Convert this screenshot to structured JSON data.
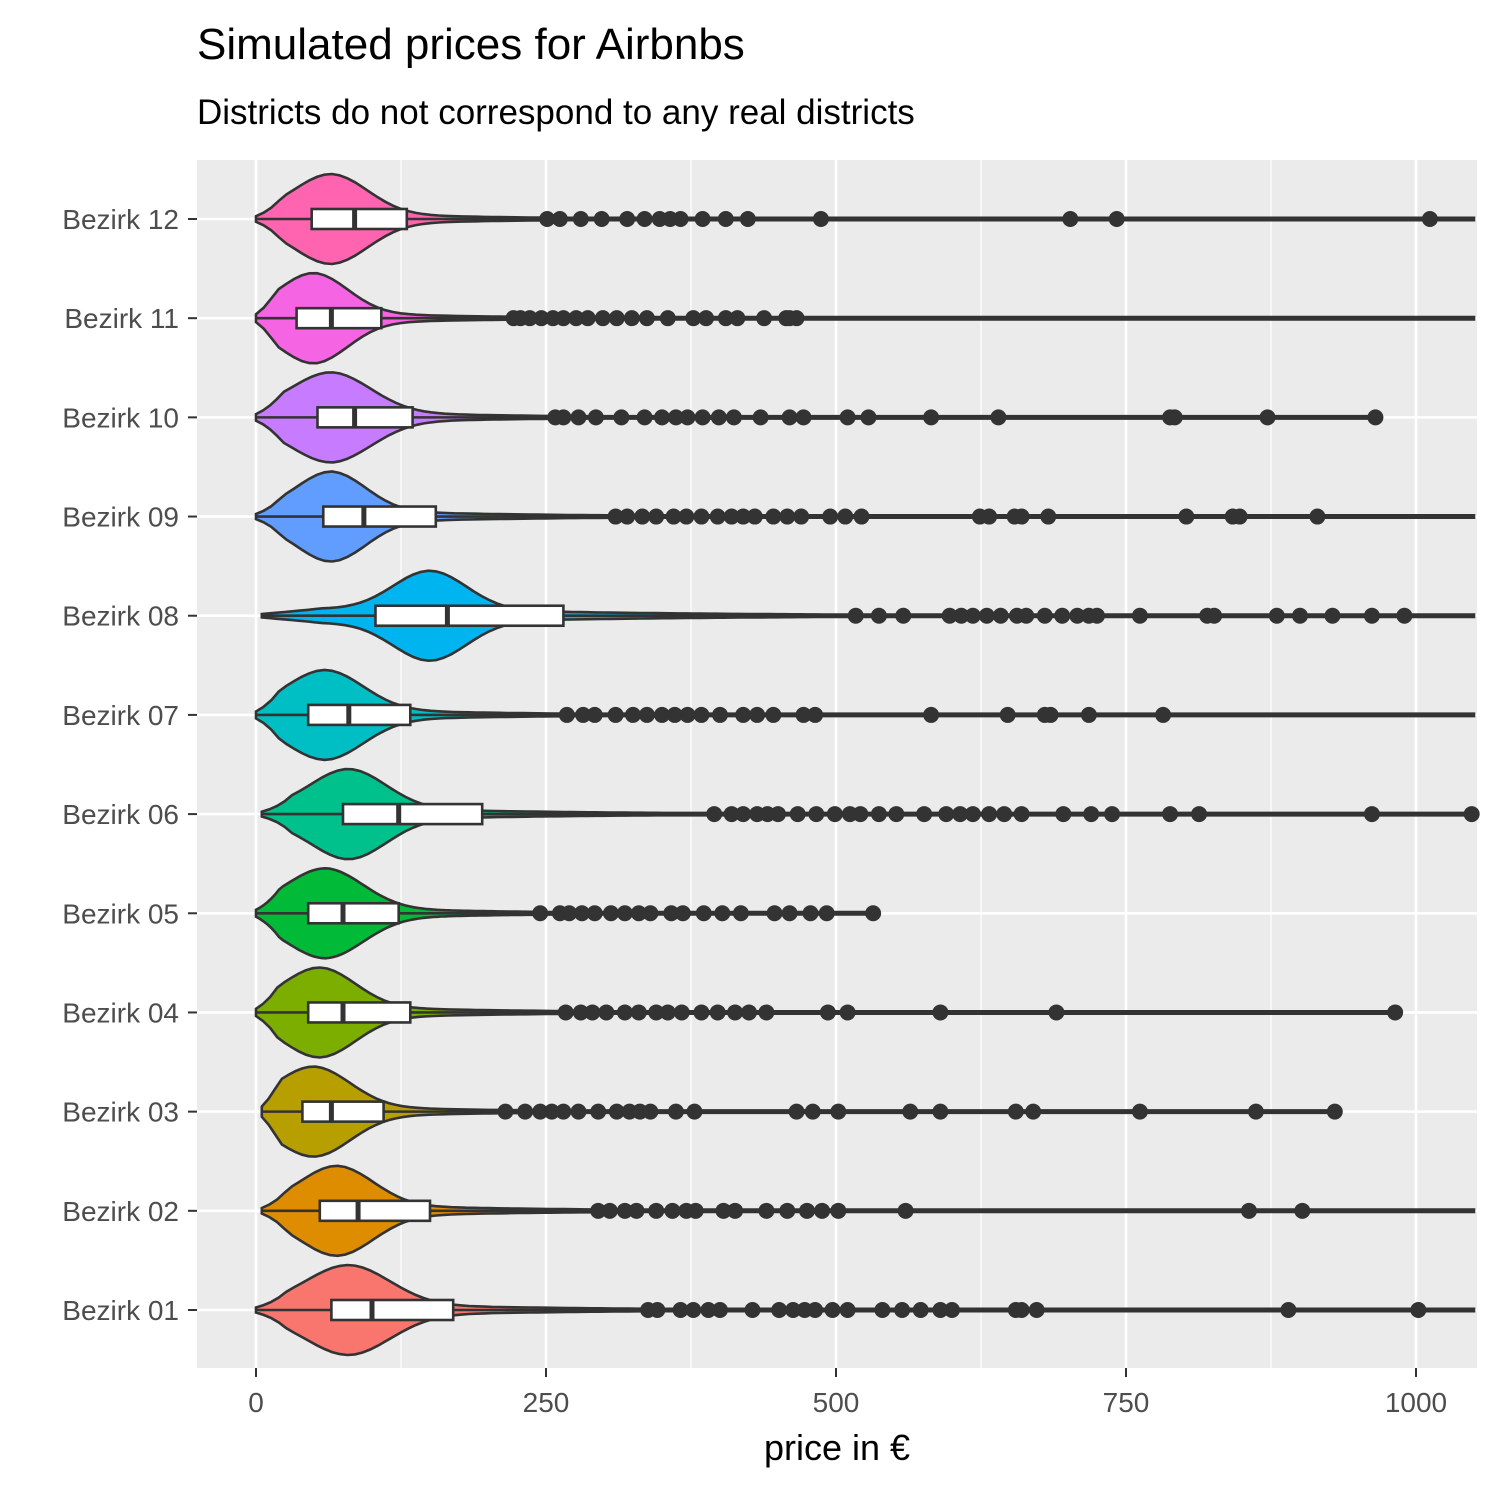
{
  "chart_data": {
    "type": "violin",
    "title": "Simulated prices for Airbnbs",
    "subtitle": "Districts do not correspond to any real districts",
    "xlabel": "price in €",
    "ylabel": "",
    "xlim": [
      -100,
      1050
    ],
    "x_ticks": [
      0,
      250,
      500,
      750,
      1000
    ],
    "x_tick_labels": [
      "0",
      "250",
      "500",
      "750",
      "1000"
    ],
    "grid": true,
    "legend": "none",
    "categories": [
      "Bezirk 01",
      "Bezirk 02",
      "Bezirk 03",
      "Bezirk 04",
      "Bezirk 05",
      "Bezirk 06",
      "Bezirk 07",
      "Bezirk 08",
      "Bezirk 09",
      "Bezirk 10",
      "Bezirk 11",
      "Bezirk 12"
    ],
    "series": [
      {
        "category": "Bezirk 01",
        "color": "#F8766D",
        "min": 0,
        "max": 1050,
        "mode": 80,
        "q1": 65,
        "median": 100,
        "q3": 170,
        "modeWidth": 0.33,
        "outliers": [
          338,
          346,
          366,
          377,
          390,
          400,
          428,
          451,
          463,
          473,
          482,
          497,
          510,
          540,
          557,
          573,
          590,
          600,
          655,
          660,
          673,
          890,
          1002
        ]
      },
      {
        "category": "Bezirk 02",
        "color": "#DE8C00",
        "min": 5,
        "max": 1050,
        "mode": 70,
        "q1": 55,
        "median": 88,
        "q3": 150,
        "modeWidth": 0.33,
        "outliers": [
          295,
          305,
          318,
          328,
          345,
          359,
          371,
          379,
          403,
          413,
          440,
          458,
          475,
          488,
          502,
          560,
          856,
          902
        ]
      },
      {
        "category": "Bezirk 03",
        "color": "#B79F00",
        "min": 5,
        "max": 930,
        "mode": 50,
        "q1": 40,
        "median": 65,
        "q3": 110,
        "modeWidth": 0.48,
        "outliers": [
          215,
          232,
          245,
          255,
          265,
          278,
          295,
          311,
          322,
          331,
          340,
          362,
          378,
          466,
          480,
          502,
          564,
          590,
          655,
          670,
          762,
          862,
          930
        ]
      },
      {
        "category": "Bezirk 04",
        "color": "#7CAE00",
        "min": 0,
        "max": 980,
        "mode": 55,
        "q1": 45,
        "median": 75,
        "q3": 133,
        "modeWidth": 0.38,
        "outliers": [
          267,
          280,
          290,
          302,
          318,
          330,
          345,
          355,
          367,
          384,
          398,
          413,
          425,
          440,
          493,
          510,
          590,
          690,
          982
        ]
      },
      {
        "category": "Bezirk 05",
        "color": "#00BA38",
        "min": 0,
        "max": 532,
        "mode": 60,
        "q1": 45,
        "median": 75,
        "q3": 123,
        "modeWidth": 0.38,
        "outliers": [
          245,
          262,
          270,
          281,
          292,
          306,
          318,
          330,
          340,
          358,
          368,
          386,
          402,
          418,
          447,
          460,
          478,
          492,
          532
        ]
      },
      {
        "category": "Bezirk 06",
        "color": "#00C08B",
        "min": 5,
        "max": 1050,
        "mode": 80,
        "q1": 75,
        "median": 123,
        "q3": 195,
        "modeWidth": 0.3,
        "outliers": [
          395,
          410,
          420,
          432,
          441,
          450,
          467,
          483,
          499,
          512,
          521,
          537,
          552,
          576,
          595,
          607,
          618,
          632,
          645,
          660,
          696,
          720,
          738,
          788,
          813,
          962,
          1048
        ]
      },
      {
        "category": "Bezirk 07",
        "color": "#00BFC4",
        "min": 0,
        "max": 1050,
        "mode": 60,
        "q1": 45,
        "median": 80,
        "q3": 133,
        "modeWidth": 0.38,
        "outliers": [
          268,
          282,
          292,
          310,
          325,
          337,
          350,
          361,
          372,
          384,
          400,
          420,
          432,
          446,
          472,
          482,
          582,
          648,
          680,
          685,
          718,
          782
        ]
      },
      {
        "category": "Bezirk 08",
        "color": "#00B4F0",
        "min": 5,
        "max": 1050,
        "mode": 150,
        "q1": 103,
        "median": 165,
        "q3": 265,
        "modeWidth": 0.15,
        "outliers": [
          517,
          537,
          558,
          598,
          608,
          618,
          630,
          642,
          656,
          664,
          680,
          695,
          708,
          718,
          725,
          762,
          820,
          826,
          880,
          900,
          928,
          962,
          990
        ]
      },
      {
        "category": "Bezirk 09",
        "color": "#619CFF",
        "min": 0,
        "max": 1050,
        "mode": 65,
        "q1": 58,
        "median": 93,
        "q3": 155,
        "modeWidth": 0.3,
        "outliers": [
          310,
          320,
          333,
          345,
          360,
          371,
          384,
          398,
          410,
          420,
          430,
          446,
          458,
          470,
          495,
          508,
          522,
          624,
          632,
          654,
          660,
          683,
          802,
          842,
          848,
          915
        ]
      },
      {
        "category": "Bezirk 10",
        "color": "#C77CFF",
        "min": 0,
        "max": 965,
        "mode": 65,
        "q1": 53,
        "median": 85,
        "q3": 135,
        "modeWidth": 0.38,
        "outliers": [
          258,
          265,
          278,
          293,
          315,
          335,
          350,
          362,
          372,
          385,
          399,
          412,
          435,
          460,
          472,
          510,
          528,
          582,
          640,
          788,
          792,
          872,
          965
        ]
      },
      {
        "category": "Bezirk 11",
        "color": "#F564E3",
        "min": 0,
        "max": 1050,
        "mode": 50,
        "q1": 35,
        "median": 65,
        "q3": 108,
        "modeWidth": 0.38,
        "outliers": [
          222,
          228,
          236,
          246,
          256,
          265,
          276,
          286,
          299,
          311,
          324,
          337,
          355,
          377,
          388,
          405,
          415,
          438,
          457,
          460,
          466
        ]
      },
      {
        "category": "Bezirk 12",
        "color": "#FF64B0",
        "min": 0,
        "max": 1050,
        "mode": 65,
        "q1": 48,
        "median": 85,
        "q3": 130,
        "modeWidth": 0.33,
        "outliers": [
          251,
          262,
          280,
          298,
          320,
          335,
          348,
          357,
          366,
          385,
          405,
          424,
          487,
          702,
          742,
          1012
        ]
      }
    ]
  }
}
